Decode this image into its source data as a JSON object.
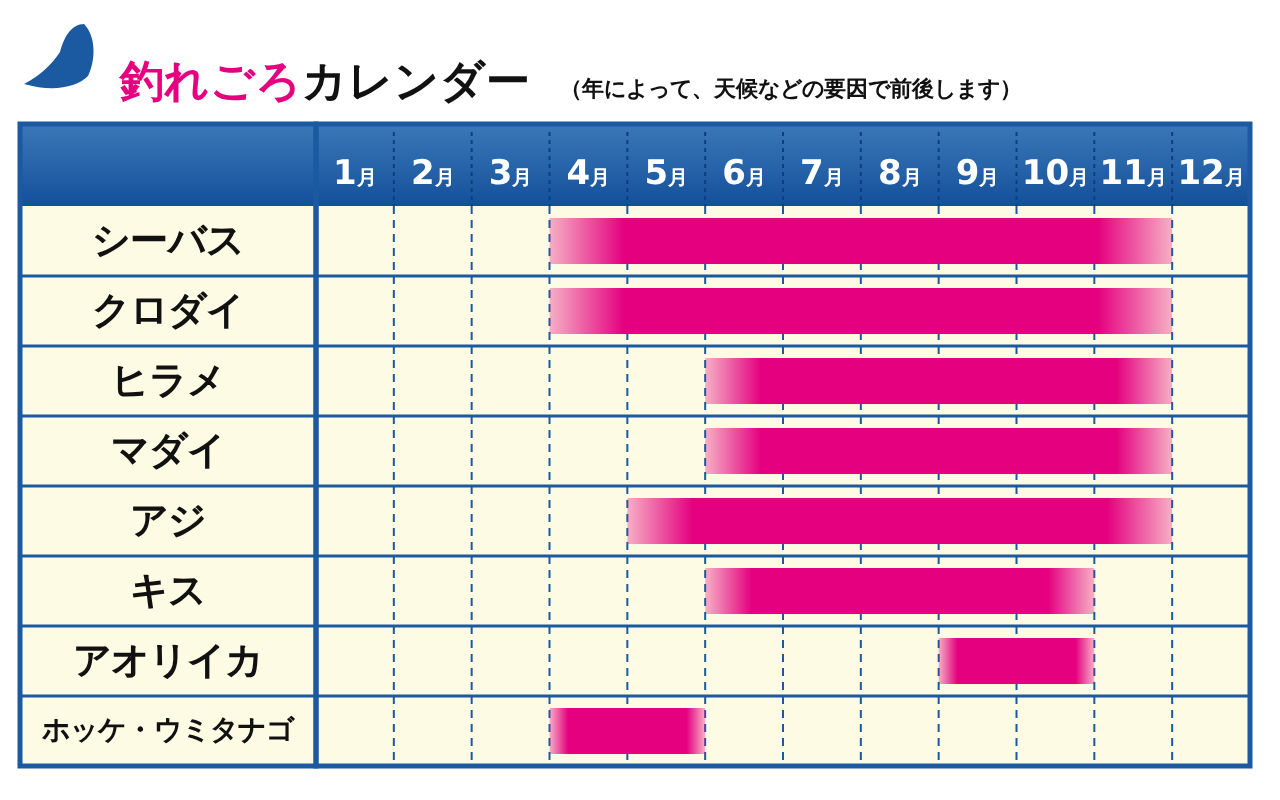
{
  "chart_data": {
    "type": "bar",
    "orientation": "horizontal",
    "title": "釣れごろカレンダー",
    "subtitle": "（年によって、天候などの要因で前後します）",
    "categories": [
      "シーバス",
      "クロダイ",
      "ヒラメ",
      "マダイ",
      "アジ",
      "キス",
      "アオリイカ",
      "ホッケ・ウミタナゴ"
    ],
    "base": [
      3,
      3,
      5,
      5,
      4,
      5,
      8,
      3
    ],
    "values": [
      8,
      8,
      6,
      6,
      7,
      5,
      2,
      2
    ],
    "color": "#e4007f",
    "xlim": [
      0,
      12
    ],
    "xticks": [
      {
        "value": 0.5,
        "label": "1月"
      },
      {
        "value": 1.5,
        "label": "2月"
      },
      {
        "value": 2.5,
        "label": "3月"
      },
      {
        "value": 3.5,
        "label": "4月"
      },
      {
        "value": 4.5,
        "label": "5月"
      },
      {
        "value": 5.5,
        "label": "6月"
      },
      {
        "value": 6.5,
        "label": "7月"
      },
      {
        "value": 7.5,
        "label": "8月"
      },
      {
        "value": 8.5,
        "label": "9月"
      },
      {
        "value": 9.5,
        "label": "10月"
      },
      {
        "value": 10.5,
        "label": "11月"
      },
      {
        "value": 11.5,
        "label": "12月"
      },
      {
        "value": 1,
        "label": null
      },
      {
        "value": 2,
        "label": null
      },
      {
        "value": 3,
        "label": null
      },
      {
        "value": 4,
        "label": null
      },
      {
        "value": 5,
        "label": null
      },
      {
        "value": 6,
        "label": null
      },
      {
        "value": 7,
        "label": null
      },
      {
        "value": 8,
        "label": null
      },
      {
        "value": 9,
        "label": null
      },
      {
        "value": 10,
        "label": null
      },
      {
        "value": 11,
        "label": null
      }
    ],
    "grid": "x"
  }
}
